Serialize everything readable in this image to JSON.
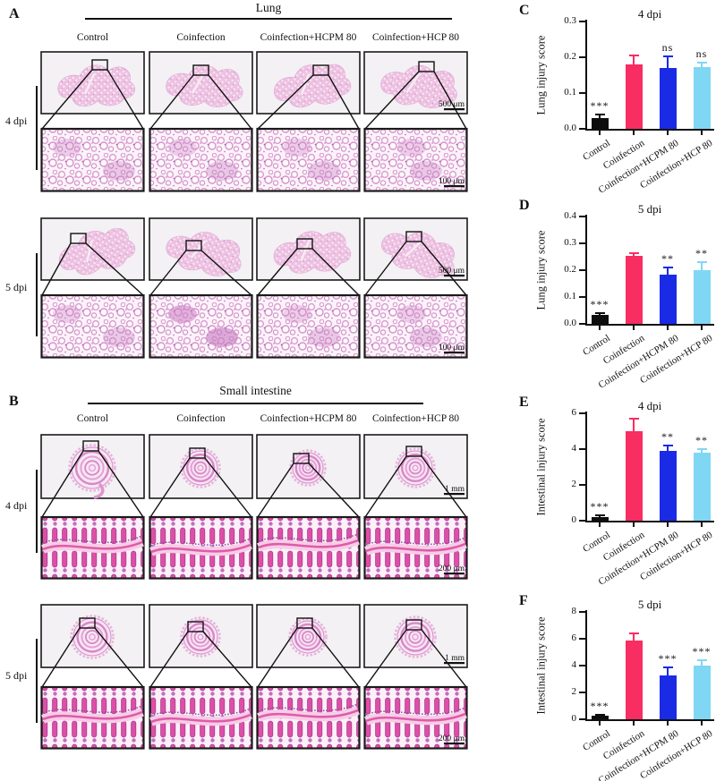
{
  "figure": {
    "panel_a": {
      "letter": "A",
      "title": "Lung",
      "columns": [
        "Control",
        "Coinfection",
        "Coinfection+HCPM 80",
        "Coinfection+HCP 80"
      ],
      "rows": [
        {
          "label": "4 dpi",
          "overview_scale_bar": "500 μm",
          "zoom_scale_bar": "100 μm"
        },
        {
          "label": "5 dpi",
          "overview_scale_bar": "500 μm",
          "zoom_scale_bar": "100 μm"
        }
      ]
    },
    "panel_b": {
      "letter": "B",
      "title": "Small intestine",
      "columns": [
        "Control",
        "Coinfection",
        "Coinfection+HCPM 80",
        "Coinfection+HCP 80"
      ],
      "rows": [
        {
          "label": "4 dpi",
          "overview_scale_bar": "1 mm",
          "zoom_scale_bar": "200 μm"
        },
        {
          "label": "5 dpi",
          "overview_scale_bar": "1 mm",
          "zoom_scale_bar": "200 μm"
        }
      ]
    },
    "stain_type": "H&E histology"
  },
  "colors": {
    "control_bar": "#0d0d0d",
    "coinfection_bar": "#F82D62",
    "hcpm_bar": "#1B2BE5",
    "hcp_bar": "#80D7F4",
    "axis": "#111111",
    "tissue_pink": "#e873b8"
  },
  "chart_data": [
    {
      "panel_letter": "C",
      "type": "bar",
      "title": "4 dpi",
      "ylabel": "Lung injury score",
      "xlabel": "",
      "ylim": [
        0,
        0.3
      ],
      "ytick_labels": [
        "0.0",
        "0.1",
        "0.2",
        "0.3"
      ],
      "categories": [
        "Control",
        "Coinfection",
        "Coinfection+HCPM 80",
        "Coinfection+HCP 80"
      ],
      "values": [
        0.03,
        0.18,
        0.17,
        0.172
      ],
      "errors": [
        0.012,
        0.028,
        0.036,
        0.015
      ],
      "significance": [
        "***",
        "",
        "ns",
        "ns"
      ],
      "bar_colors": [
        "#0d0d0d",
        "#F82D62",
        "#1B2BE5",
        "#80D7F4"
      ],
      "grid": false,
      "legend": "none"
    },
    {
      "panel_letter": "D",
      "type": "bar",
      "title": "5 dpi",
      "ylabel": "Lung injury score",
      "xlabel": "",
      "ylim": [
        0,
        0.4
      ],
      "ytick_labels": [
        "0.0",
        "0.1",
        "0.2",
        "0.3",
        "0.4"
      ],
      "categories": [
        "Control",
        "Coinfection",
        "Coinfection+HCPM 80",
        "Coinfection+HCP 80"
      ],
      "values": [
        0.035,
        0.255,
        0.185,
        0.2
      ],
      "errors": [
        0.01,
        0.013,
        0.027,
        0.032
      ],
      "significance": [
        "***",
        "",
        "**",
        "**"
      ],
      "bar_colors": [
        "#0d0d0d",
        "#F82D62",
        "#1B2BE5",
        "#80D7F4"
      ],
      "grid": false,
      "legend": "none"
    },
    {
      "panel_letter": "E",
      "type": "bar",
      "title": "4 dpi",
      "ylabel": "Intestinal injury score",
      "xlabel": "",
      "ylim": [
        0,
        6
      ],
      "ytick_labels": [
        "0",
        "2",
        "4",
        "6"
      ],
      "categories": [
        "Control",
        "Coinfection",
        "Coinfection+HCPM 80",
        "Coinfection+HCP 80"
      ],
      "values": [
        0.2,
        5.0,
        3.9,
        3.8
      ],
      "errors": [
        0.15,
        0.75,
        0.35,
        0.25
      ],
      "significance": [
        "***",
        "",
        "**",
        "**"
      ],
      "bar_colors": [
        "#0d0d0d",
        "#F82D62",
        "#1B2BE5",
        "#80D7F4"
      ],
      "grid": false,
      "legend": "none"
    },
    {
      "panel_letter": "F",
      "type": "bar",
      "title": "5 dpi",
      "ylabel": "Intestinal injury score",
      "xlabel": "",
      "ylim": [
        0,
        8
      ],
      "ytick_labels": [
        "0",
        "2",
        "4",
        "6",
        "8"
      ],
      "categories": [
        "Control",
        "Coinfection",
        "Coinfection+HCPM 80",
        "Coinfection+HCP 80"
      ],
      "values": [
        0.25,
        5.85,
        3.25,
        4.0
      ],
      "errors": [
        0.12,
        0.65,
        0.7,
        0.45
      ],
      "significance": [
        "***",
        "",
        "***",
        "***"
      ],
      "bar_colors": [
        "#0d0d0d",
        "#F82D62",
        "#1B2BE5",
        "#80D7F4"
      ],
      "grid": false,
      "legend": "none"
    }
  ]
}
